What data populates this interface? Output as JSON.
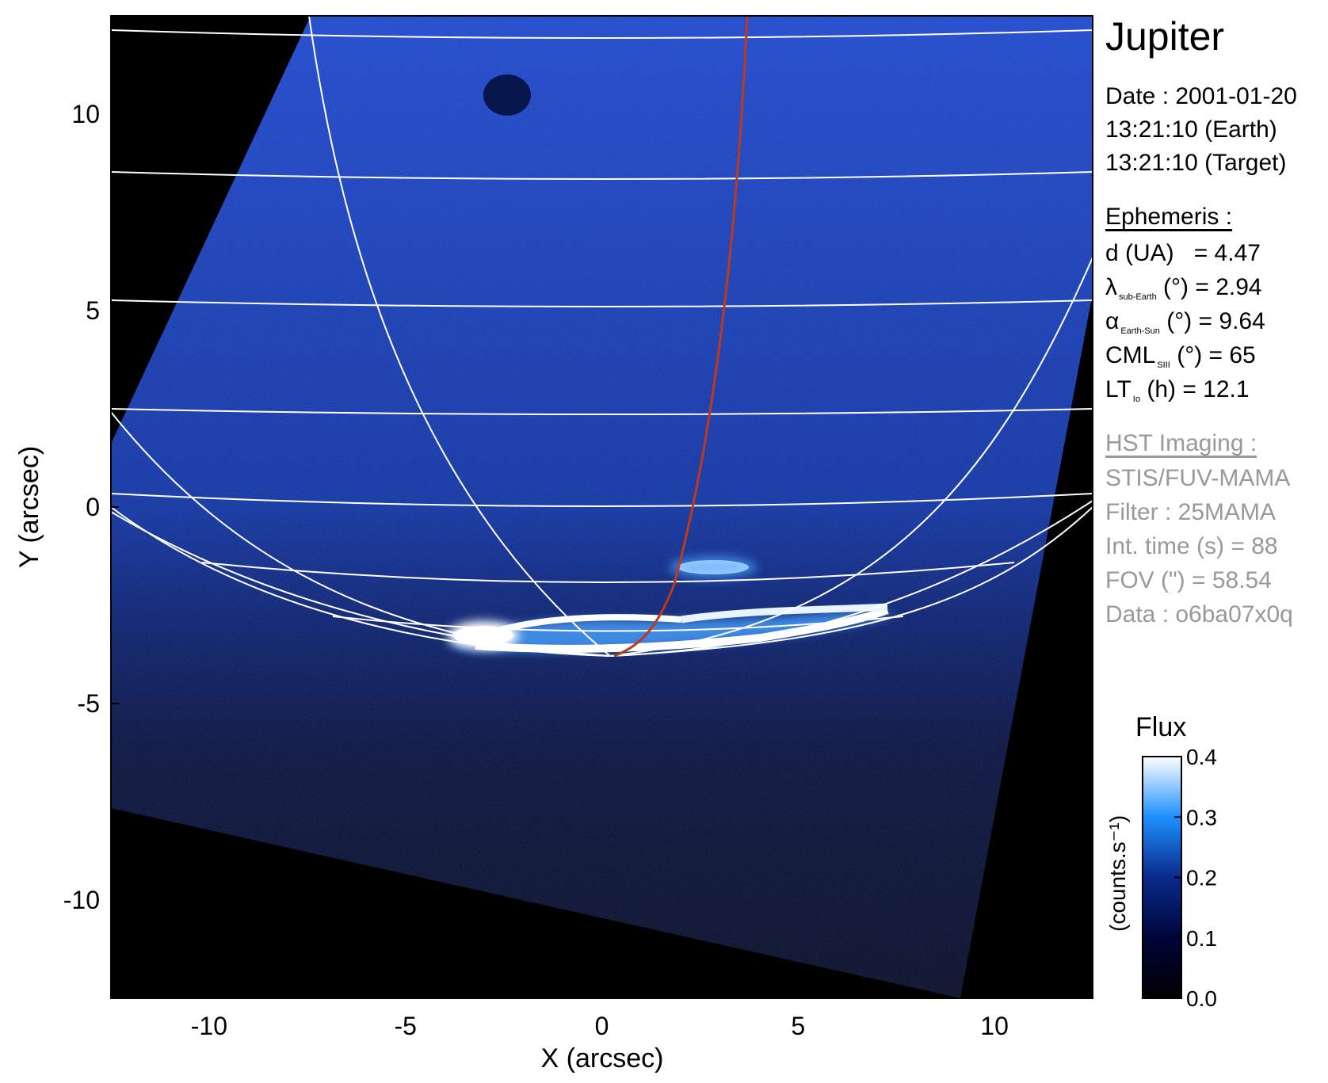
{
  "chart_data": {
    "type": "heatmap",
    "xlabel": "X (arcsec)",
    "ylabel": "Y (arcsec)",
    "xlim": [
      -12.5,
      12.5
    ],
    "ylim": [
      -12.5,
      12.5
    ],
    "xticks": [
      -10,
      -5,
      0,
      5,
      10
    ],
    "yticks": [
      -10,
      -5,
      0,
      5,
      10
    ],
    "colorbar": {
      "title": "Flux",
      "label": "(counts.s⁻¹)",
      "range": [
        0.0,
        0.4
      ],
      "ticks": [
        "0.0",
        "0.1",
        "0.2",
        "0.3",
        "0.4"
      ],
      "colors": [
        "#000000",
        "#00053a",
        "#0a2a8c",
        "#1e90ff",
        "#ffffff"
      ]
    }
  },
  "info": {
    "title": "Jupiter",
    "date": "Date : 2001-01-20",
    "time_earth": "13:21:10 (Earth)",
    "time_target": "13:21:10 (Target)",
    "ephemeris_heading": "Ephemeris :",
    "d": {
      "label": "d (UA)",
      "value": "= 4.47"
    },
    "lambda": {
      "symbol": "λ",
      "sub": "sub-Earth",
      "rest": "(°) = 2.94"
    },
    "alpha": {
      "symbol": "α",
      "sub": "Earth-Sun",
      "rest": "(°) = 9.64"
    },
    "cml": {
      "symbol": "CML",
      "sub": "SIII",
      "rest": "(°) = 65"
    },
    "lt": {
      "symbol": "LT",
      "sub": "Io",
      "rest": "(h) = 12.1"
    },
    "hst_heading": "HST Imaging :",
    "instrument": "STIS/FUV-MAMA",
    "filter": "Filter : 25MAMA",
    "int_time": "Int. time (s) = 88",
    "fov": "FOV (\") = 58.54",
    "data": "Data : o6ba07x0q"
  },
  "colors": {
    "background": "#000000",
    "disk": "#0b2f9e",
    "aurora": "#ffffff",
    "grid": "#ffffff",
    "meridian": "#c0391b"
  }
}
